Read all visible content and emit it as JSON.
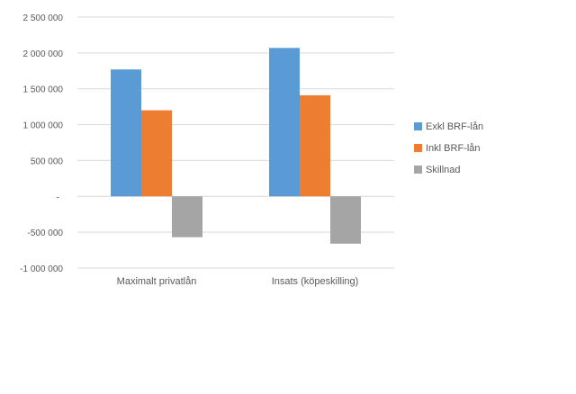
{
  "chart_data": {
    "type": "bar",
    "categories": [
      "Maximalt privatlån",
      "Insats (köpeskilling)"
    ],
    "series": [
      {
        "name": "Exkl BRF-lån",
        "values": [
          1770000,
          2070000
        ],
        "color": "#5b9bd5"
      },
      {
        "name": "Inkl BRF-lån",
        "values": [
          1200000,
          1410000
        ],
        "color": "#ed7d31"
      },
      {
        "name": "Skillnad",
        "values": [
          -570000,
          -660000
        ],
        "color": "#a5a5a5"
      }
    ],
    "y_ticks": [
      {
        "value": 2500000,
        "label": "2 500 000"
      },
      {
        "value": 2000000,
        "label": "2 000 000"
      },
      {
        "value": 1500000,
        "label": "1 500 000"
      },
      {
        "value": 1000000,
        "label": "1 000 000"
      },
      {
        "value": 500000,
        "label": "500 000"
      },
      {
        "value": 0,
        "label": "-"
      },
      {
        "value": -500000,
        "label": "-500 000"
      },
      {
        "value": -1000000,
        "label": "-1 000 000"
      }
    ],
    "ylim": [
      -1000000,
      2500000
    ],
    "grid": true,
    "legend_position": "right"
  }
}
